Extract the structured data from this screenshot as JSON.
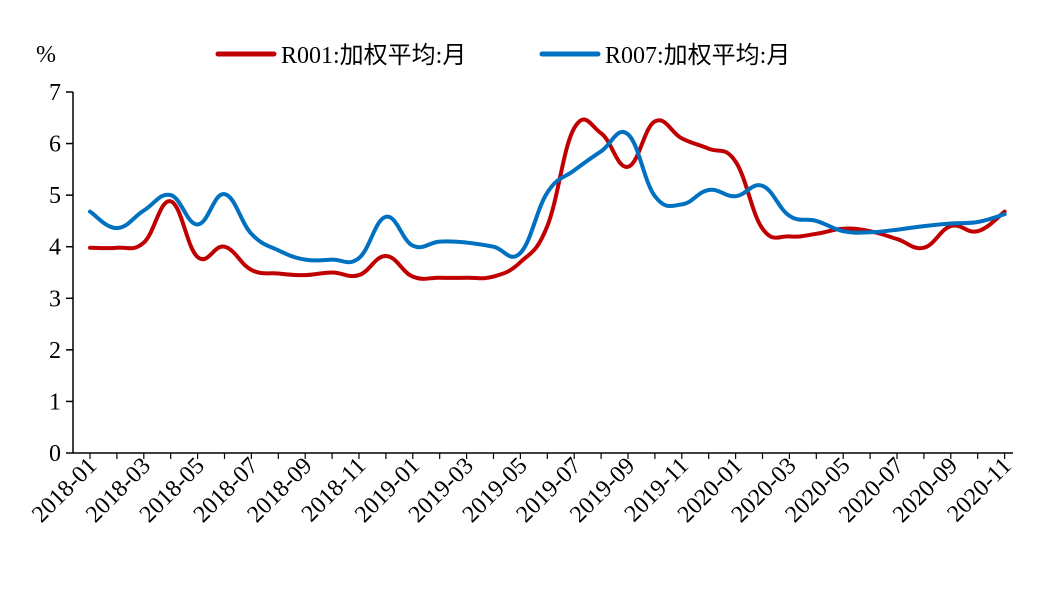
{
  "chart_data": {
    "type": "line",
    "title": "",
    "xlabel": "",
    "ylabel": "%",
    "ylim": [
      0,
      7
    ],
    "yticks": [
      0,
      1,
      2,
      3,
      4,
      5,
      6,
      7
    ],
    "grid": false,
    "legend_position": "top",
    "x": [
      "2018-01",
      "2018-02",
      "2018-03",
      "2018-04",
      "2018-05",
      "2018-06",
      "2018-07",
      "2018-08",
      "2018-09",
      "2018-10",
      "2018-11",
      "2018-12",
      "2019-01",
      "2019-02",
      "2019-03",
      "2019-04",
      "2019-05",
      "2019-06",
      "2019-07",
      "2019-08",
      "2019-09",
      "2019-10",
      "2019-11",
      "2019-12",
      "2020-01",
      "2020-02",
      "2020-03",
      "2020-04",
      "2020-05",
      "2020-06",
      "2020-07",
      "2020-08",
      "2020-09",
      "2020-10",
      "2020-11"
    ],
    "x_tick_labels": [
      "2018-01",
      "2018-03",
      "2018-05",
      "2018-07",
      "2018-09",
      "2018-11",
      "2019-01",
      "2019-03",
      "2019-05",
      "2019-07",
      "2019-09",
      "2019-11",
      "2020-01",
      "2020-03",
      "2020-05",
      "2020-07",
      "2020-09",
      "2020-11"
    ],
    "series": [
      {
        "name": "R001:加权平均:月",
        "color": "#c00000",
        "values": [
          3.98,
          3.98,
          4.08,
          4.88,
          3.8,
          4.0,
          3.55,
          3.48,
          3.45,
          3.5,
          3.45,
          3.82,
          3.42,
          3.4,
          3.4,
          3.42,
          3.7,
          4.4,
          6.3,
          6.2,
          5.55,
          6.43,
          6.1,
          5.9,
          5.65,
          4.35,
          4.2,
          4.25,
          4.35,
          4.3,
          4.15,
          3.98,
          4.4,
          4.3,
          4.68
        ]
      },
      {
        "name": "R007:加权平均:月",
        "color": "#0070c0",
        "values": [
          4.68,
          4.36,
          4.7,
          5.0,
          4.43,
          5.02,
          4.25,
          3.93,
          3.75,
          3.75,
          3.78,
          4.58,
          4.02,
          4.1,
          4.08,
          4.0,
          3.88,
          5.05,
          5.48,
          5.85,
          6.18,
          4.98,
          4.82,
          5.1,
          4.98,
          5.18,
          4.6,
          4.5,
          4.3,
          4.28,
          4.33,
          4.4,
          4.45,
          4.48,
          4.63
        ]
      }
    ]
  }
}
